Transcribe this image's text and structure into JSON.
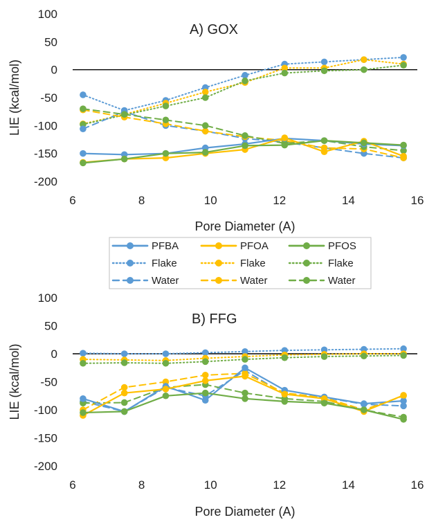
{
  "legend": {
    "entries": [
      {
        "label": "PFBA",
        "color": "#5b9bd5",
        "style": "solid"
      },
      {
        "label": "PFOA",
        "color": "#ffc000",
        "style": "solid"
      },
      {
        "label": "PFOS",
        "color": "#70ad47",
        "style": "solid"
      },
      {
        "label": "Flake",
        "color": "#5b9bd5",
        "style": "dotted"
      },
      {
        "label": "Flake",
        "color": "#ffc000",
        "style": "dotted"
      },
      {
        "label": "Flake",
        "color": "#70ad47",
        "style": "dotted"
      },
      {
        "label": "Water",
        "color": "#5b9bd5",
        "style": "dashed"
      },
      {
        "label": "Water",
        "color": "#ffc000",
        "style": "dashed"
      },
      {
        "label": "Water",
        "color": "#70ad47",
        "style": "dashed"
      }
    ]
  },
  "chart_data": [
    {
      "type": "line",
      "title": "A) GOX",
      "xlabel": "Pore Diameter (A)",
      "ylabel": "LIE (kcal/mol)",
      "xlim": [
        6,
        16
      ],
      "ylim": [
        -200,
        100
      ],
      "xticks": [
        "6",
        "8",
        "10",
        "12",
        "14",
        "16"
      ],
      "yticks": [
        "100",
        "50",
        "0",
        "-50",
        "-100",
        "-150",
        "-200"
      ],
      "x": [
        6.3,
        7.5,
        8.7,
        9.85,
        11.0,
        12.15,
        13.3,
        14.45,
        15.6
      ],
      "series": [
        {
          "name": "PFBA",
          "color": "#5b9bd5",
          "style": "solid",
          "values": [
            -150,
            -152,
            -150,
            -140,
            -133,
            -123,
            -127,
            -133,
            -136
          ]
        },
        {
          "name": "PFOA",
          "color": "#ffc000",
          "style": "solid",
          "values": [
            -166,
            -160,
            -158,
            -150,
            -143,
            -122,
            -147,
            -128,
            -155
          ]
        },
        {
          "name": "PFOS",
          "color": "#70ad47",
          "style": "solid",
          "values": [
            -167,
            -160,
            -150,
            -148,
            -136,
            -135,
            -127,
            -131,
            -135
          ]
        },
        {
          "name": "Flake",
          "color": "#5b9bd5",
          "style": "dotted",
          "values": [
            -45,
            -73,
            -55,
            -32,
            -10,
            10,
            14,
            18,
            22
          ]
        },
        {
          "name": "Flake",
          "color": "#ffc000",
          "style": "dotted",
          "values": [
            -97,
            -80,
            -60,
            -40,
            -23,
            3,
            3,
            18,
            10
          ]
        },
        {
          "name": "Flake",
          "color": "#70ad47",
          "style": "dotted",
          "values": [
            -98,
            -81,
            -65,
            -50,
            -20,
            -6,
            -2,
            0,
            8
          ]
        },
        {
          "name": "Water",
          "color": "#5b9bd5",
          "style": "dashed",
          "values": [
            -106,
            -75,
            -100,
            -110,
            -123,
            -130,
            -140,
            -150,
            -158
          ]
        },
        {
          "name": "Water",
          "color": "#ffc000",
          "style": "dashed",
          "values": [
            -72,
            -85,
            -97,
            -110,
            -120,
            -127,
            -140,
            -142,
            -158
          ]
        },
        {
          "name": "Water",
          "color": "#70ad47",
          "style": "dashed",
          "values": [
            -70,
            -80,
            -90,
            -100,
            -118,
            -132,
            -127,
            -138,
            -145
          ]
        }
      ]
    },
    {
      "type": "line",
      "title": "B) FFG",
      "xlabel": "Pore Diameter (A)",
      "ylabel": "LIE (kcal/mol)",
      "xlim": [
        6,
        16
      ],
      "ylim": [
        -200,
        100
      ],
      "xticks": [
        "6",
        "8",
        "10",
        "12",
        "14",
        "16"
      ],
      "yticks": [
        "100",
        "50",
        "0",
        "-50",
        "-100",
        "-150",
        "-200"
      ],
      "x": [
        6.3,
        7.5,
        8.7,
        9.85,
        11.0,
        12.15,
        13.3,
        14.45,
        15.6
      ],
      "series": [
        {
          "name": "PFBA",
          "color": "#5b9bd5",
          "style": "solid",
          "values": [
            -80,
            -103,
            -58,
            -83,
            -25,
            -65,
            -77,
            -89,
            -84
          ]
        },
        {
          "name": "PFOA",
          "color": "#ffc000",
          "style": "solid",
          "values": [
            -110,
            -70,
            -63,
            -48,
            -40,
            -72,
            -80,
            -103,
            -74
          ]
        },
        {
          "name": "PFOS",
          "color": "#70ad47",
          "style": "solid",
          "values": [
            -105,
            -103,
            -75,
            -70,
            -80,
            -85,
            -88,
            -100,
            -117
          ]
        },
        {
          "name": "Flake",
          "color": "#5b9bd5",
          "style": "dotted",
          "values": [
            1,
            0,
            0,
            2,
            4,
            6,
            7,
            8,
            9
          ]
        },
        {
          "name": "Flake",
          "color": "#ffc000",
          "style": "dotted",
          "values": [
            -10,
            -11,
            -12,
            -8,
            -5,
            -2,
            -1,
            0,
            0
          ]
        },
        {
          "name": "Flake",
          "color": "#70ad47",
          "style": "dotted",
          "values": [
            -17,
            -16,
            -17,
            -14,
            -10,
            -7,
            -5,
            -4,
            -3
          ]
        },
        {
          "name": "Water",
          "color": "#5b9bd5",
          "style": "dashed",
          "values": [
            -85,
            -103,
            -60,
            -75,
            -30,
            -72,
            -78,
            -90,
            -93
          ]
        },
        {
          "name": "Water",
          "color": "#ffc000",
          "style": "dashed",
          "values": [
            -100,
            -60,
            -50,
            -38,
            -35,
            -70,
            -78,
            -100,
            -75
          ]
        },
        {
          "name": "Water",
          "color": "#70ad47",
          "style": "dashed",
          "values": [
            -88,
            -87,
            -60,
            -55,
            -70,
            -80,
            -85,
            -100,
            -113
          ]
        }
      ]
    }
  ]
}
